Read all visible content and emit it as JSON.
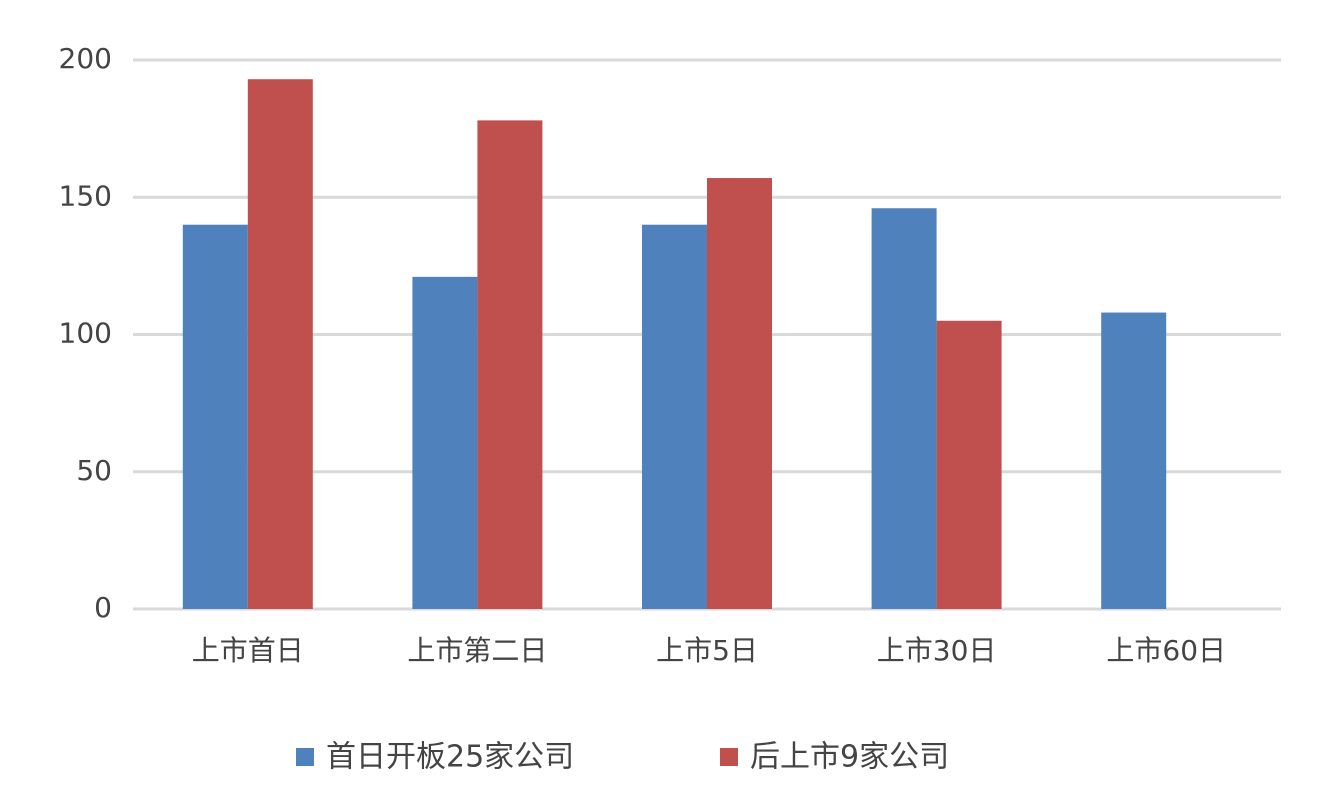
{
  "chart_data": {
    "type": "bar",
    "categories": [
      "上市首日",
      "上市第二日",
      "上市5日",
      "上市30日",
      "上市60日"
    ],
    "series": [
      {
        "name": "首日开板25家公司",
        "color": "#4f81bd",
        "values": [
          140,
          121,
          140,
          146,
          108
        ]
      },
      {
        "name": "后上市9家公司",
        "color": "#c0504d",
        "values": [
          193,
          178,
          157,
          105,
          null
        ]
      }
    ],
    "ylim": [
      0,
      200
    ],
    "yticks": [
      0,
      50,
      100,
      150,
      200
    ],
    "grid": true,
    "legend": "bottom"
  }
}
